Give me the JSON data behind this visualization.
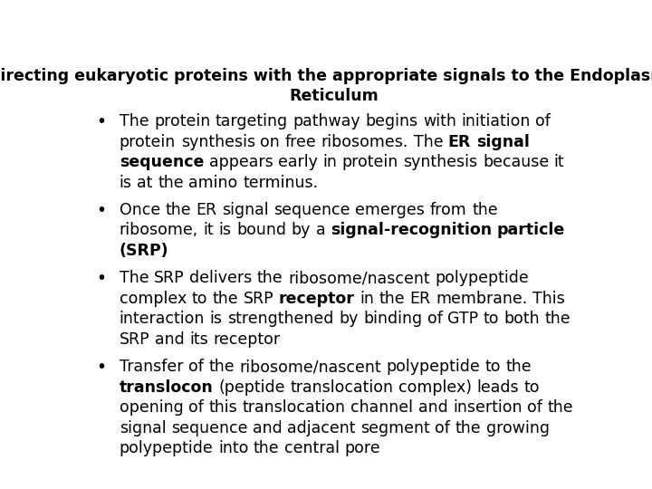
{
  "title_line1": "Directing eukaryotic proteins with the appropriate signals to the Endoplasmic",
  "title_line2": "Reticulum",
  "bg_color": "#ffffff",
  "text_color": "#000000",
  "title_fontsize": 12.5,
  "body_fontsize": 12.5,
  "figsize": [
    7.2,
    5.4
  ],
  "dpi": 100,
  "bullet_points": [
    {
      "segments": [
        {
          "text": "The protein targeting pathway begins with initiation of protein synthesis on free ribosomes. The ",
          "bold": false
        },
        {
          "text": "ER signal sequence",
          "bold": true
        },
        {
          "text": " appears early in protein synthesis because it is at the amino terminus.",
          "bold": false
        }
      ]
    },
    {
      "segments": [
        {
          "text": "Once the ER signal sequence emerges from the ribosome, it is bound by a ",
          "bold": false
        },
        {
          "text": "signal-recognition particle (SRP)",
          "bold": true
        }
      ]
    },
    {
      "segments": [
        {
          "text": "The SRP delivers the ribosome/nascent polypeptide complex to the SRP ",
          "bold": false
        },
        {
          "text": "receptor",
          "bold": true
        },
        {
          "text": " in the ER membrane. This interaction is strengthened by binding of GTP to both the SRP and its receptor",
          "bold": false
        }
      ]
    },
    {
      "segments": [
        {
          "text": "Transfer of the ribosome/nascent polypeptide to the ",
          "bold": false
        },
        {
          "text": "translocon",
          "bold": true
        },
        {
          "text": " (peptide translocation complex) leads to opening of this translocation channel and insertion of the signal sequence and adjacent segment of the growing polypeptide into the central pore",
          "bold": false
        }
      ]
    }
  ]
}
